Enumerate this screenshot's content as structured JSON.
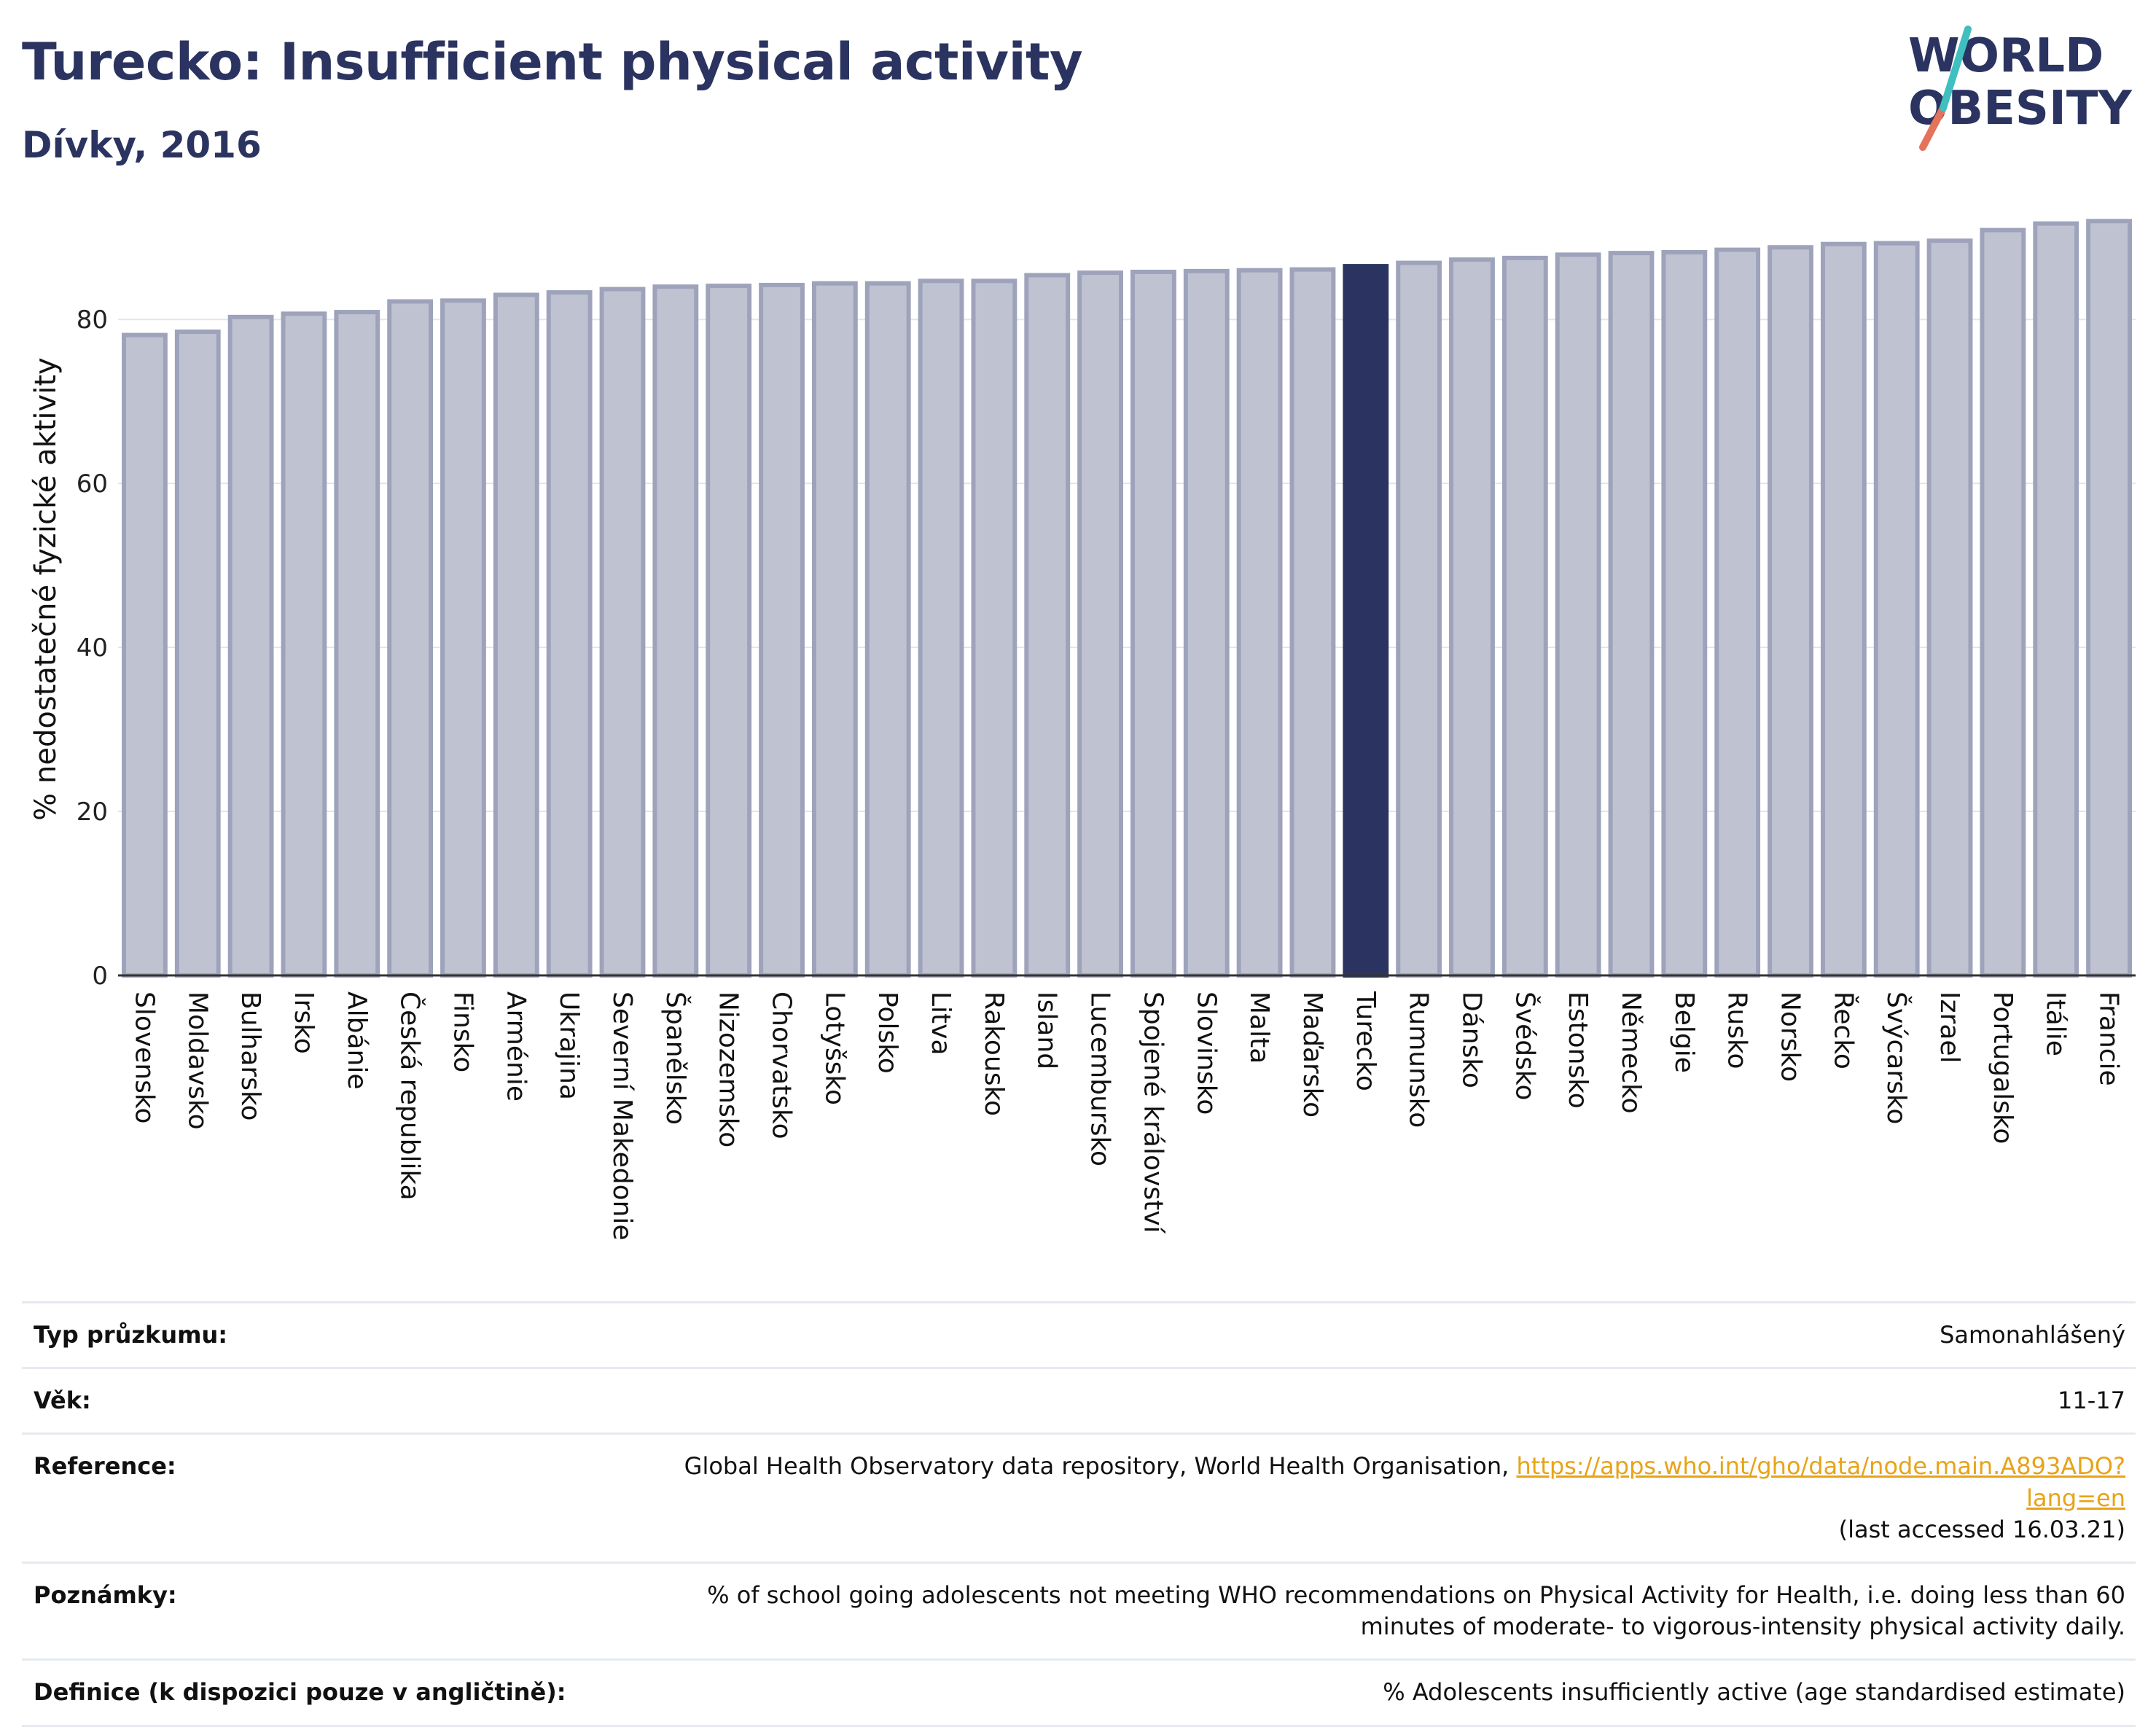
{
  "header": {
    "title": "Turecko: Insufficient physical activity",
    "subtitle": "Dívky, 2016"
  },
  "logo": {
    "line1": "WORLD",
    "line2": "OBESITY",
    "colors": [
      "#2b3460",
      "#3fbfbf",
      "#e4735a"
    ]
  },
  "chart_data": {
    "type": "bar",
    "ylabel": "% nedostatečné fyzické aktivity",
    "ylim": [
      0,
      93
    ],
    "yticks": [
      0,
      20,
      40,
      60,
      80
    ],
    "grid": true,
    "highlight": "Turecko",
    "colors": {
      "default": "#bfc3d1",
      "default_border": "#9ea3bb",
      "highlight": "#2b3460"
    },
    "categories": [
      "Slovensko",
      "Moldavsko",
      "Bulharsko",
      "Irsko",
      "Albánie",
      "Česká republika",
      "Finsko",
      "Arménie",
      "Ukrajina",
      "Severní Makedonie",
      "Španělsko",
      "Nizozemsko",
      "Chorvatsko",
      "Lotyšsko",
      "Polsko",
      "Litva",
      "Rakousko",
      "Island",
      "Lucembursko",
      "Spojené království",
      "Slovinsko",
      "Malta",
      "Maďarsko",
      "Turecko",
      "Rumunsko",
      "Dánsko",
      "Švédsko",
      "Estonsko",
      "Německo",
      "Belgie",
      "Rusko",
      "Norsko",
      "Řecko",
      "Švýcarsko",
      "Izrael",
      "Portugalsko",
      "Itálie",
      "Francie"
    ],
    "values": [
      78.1,
      78.5,
      80.3,
      80.7,
      80.9,
      82.2,
      82.3,
      83.0,
      83.3,
      83.7,
      84.0,
      84.1,
      84.2,
      84.4,
      84.4,
      84.7,
      84.7,
      85.4,
      85.7,
      85.8,
      85.9,
      86.0,
      86.1,
      86.5,
      86.9,
      87.3,
      87.5,
      87.9,
      88.1,
      88.2,
      88.5,
      88.8,
      89.2,
      89.3,
      89.6,
      90.9,
      91.7,
      92.0
    ]
  },
  "info": {
    "rows": [
      {
        "label": "Typ průzkumu:",
        "value": "Samonahlášený"
      },
      {
        "label": "Věk:",
        "value": "11-17"
      },
      {
        "label": "Reference:",
        "value": "Global Health Observatory data repository, World Health Organisation, ",
        "link": "https://apps.who.int/gho/data/node.main.A893ADO?lang=en",
        "extra": "(last accessed 16.03.21)"
      },
      {
        "label": "Poznámky:",
        "value": "% of school going adolescents not meeting WHO recommendations on Physical Activity for Health, i.e. doing less than 60 minutes of moderate- to vigorous-intensity physical activity daily."
      },
      {
        "label": "Definice (k dispozici pouze v angličtině):",
        "value": "% Adolescents insufficiently active (age standardised estimate)"
      }
    ]
  }
}
